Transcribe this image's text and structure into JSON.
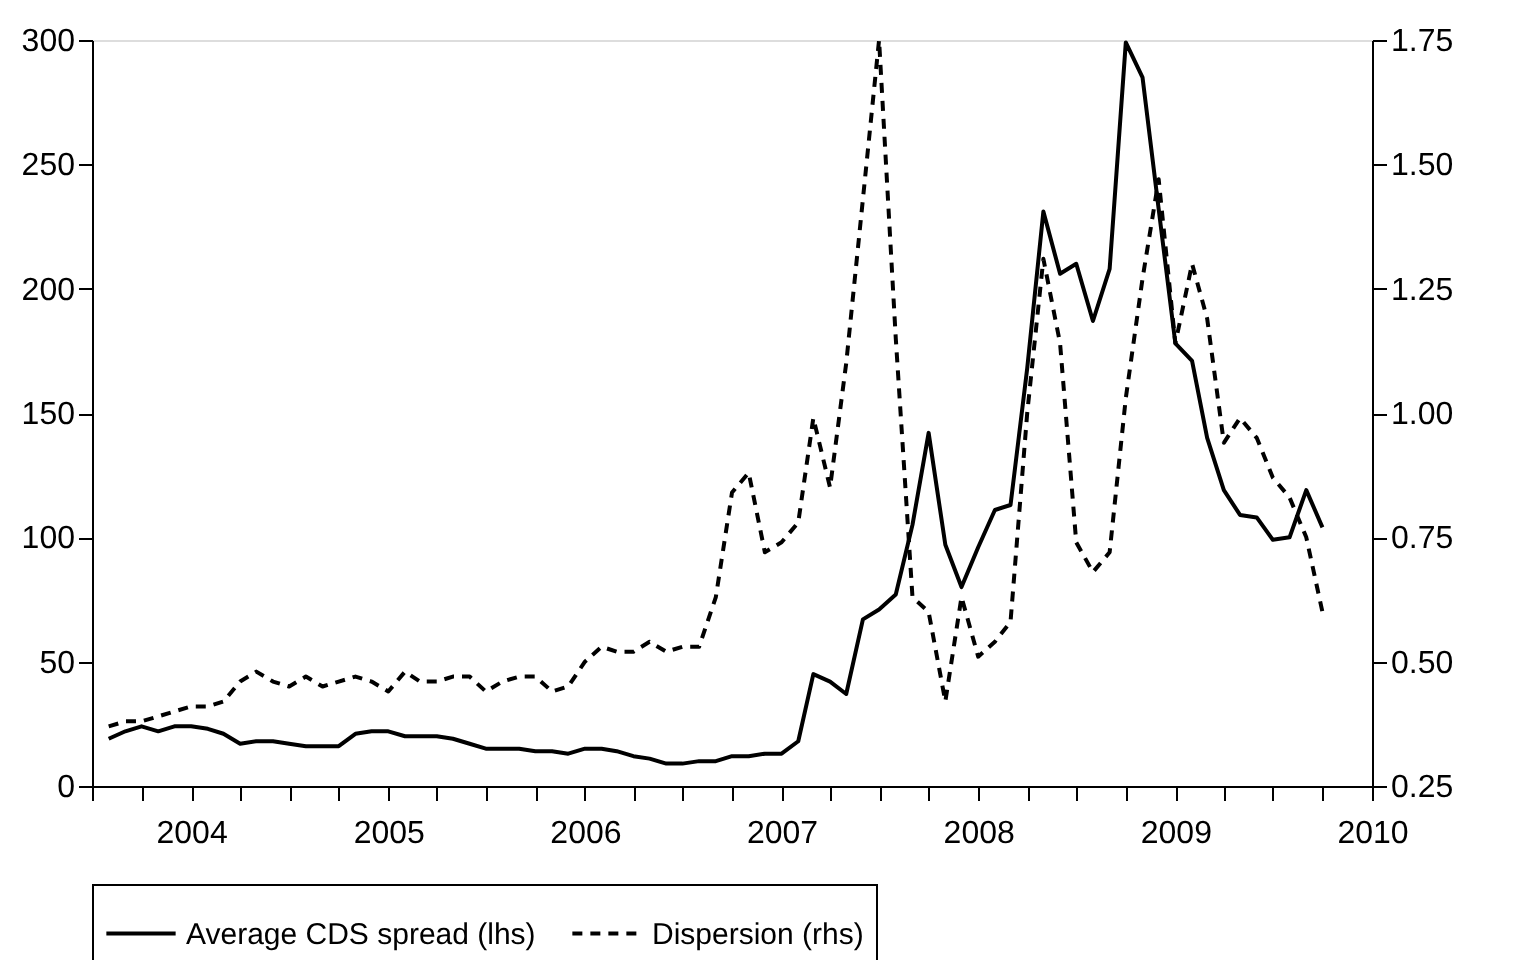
{
  "chart_data": {
    "type": "line",
    "x": [
      "2003-08",
      "2003-09",
      "2003-10",
      "2003-11",
      "2003-12",
      "2004-01",
      "2004-02",
      "2004-03",
      "2004-04",
      "2004-05",
      "2004-06",
      "2004-07",
      "2004-08",
      "2004-09",
      "2004-10",
      "2004-11",
      "2004-12",
      "2005-01",
      "2005-02",
      "2005-03",
      "2005-04",
      "2005-05",
      "2005-06",
      "2005-07",
      "2005-08",
      "2005-09",
      "2005-10",
      "2005-11",
      "2005-12",
      "2006-01",
      "2006-02",
      "2006-03",
      "2006-04",
      "2006-05",
      "2006-06",
      "2006-07",
      "2006-08",
      "2006-09",
      "2006-10",
      "2006-11",
      "2006-12",
      "2007-01",
      "2007-02",
      "2007-03",
      "2007-04",
      "2007-05",
      "2007-06",
      "2007-07",
      "2007-08",
      "2007-09",
      "2007-10",
      "2007-11",
      "2007-12",
      "2008-01",
      "2008-02",
      "2008-03",
      "2008-04",
      "2008-05",
      "2008-06",
      "2008-07",
      "2008-08",
      "2008-09",
      "2008-10",
      "2008-11",
      "2008-12",
      "2009-01",
      "2009-02",
      "2009-03",
      "2009-04",
      "2009-05",
      "2009-06",
      "2009-07",
      "2009-08",
      "2009-09",
      "2009-10"
    ],
    "series": [
      {
        "name": "Average CDS spread (lhs)",
        "color": "#000000",
        "line_style": "solid",
        "values": [
          19,
          22,
          24,
          22,
          24,
          24,
          23,
          21,
          17,
          18,
          18,
          17,
          16,
          16,
          16,
          21,
          22,
          22,
          20,
          20,
          20,
          19,
          17,
          15,
          15,
          15,
          14,
          14,
          13,
          15,
          15,
          14,
          12,
          11,
          9,
          9,
          10,
          10,
          12,
          12,
          13,
          13,
          18,
          45,
          42,
          37,
          67,
          71,
          77,
          105,
          142,
          97,
          80,
          96,
          111,
          113,
          168,
          231,
          206,
          210,
          187,
          208,
          299,
          285,
          232,
          178,
          171,
          140,
          119,
          109,
          108,
          99,
          100,
          119,
          104
        ]
      },
      {
        "name": "Dispersion (rhs)",
        "color": "#000000",
        "line_style": "dashed",
        "axis": "y2",
        "values": [
          0.37,
          0.38,
          0.38,
          0.39,
          0.4,
          0.41,
          0.41,
          0.42,
          0.46,
          0.48,
          0.46,
          0.45,
          0.47,
          0.45,
          0.46,
          0.47,
          0.46,
          0.44,
          0.48,
          0.46,
          0.46,
          0.47,
          0.47,
          0.44,
          0.46,
          0.47,
          0.47,
          0.44,
          0.45,
          0.5,
          0.53,
          0.52,
          0.52,
          0.54,
          0.52,
          0.53,
          0.53,
          0.63,
          0.84,
          0.88,
          0.72,
          0.74,
          0.78,
          0.99,
          0.85,
          1.1,
          1.43,
          1.75,
          1.15,
          0.63,
          0.6,
          0.42,
          0.63,
          0.51,
          0.54,
          0.58,
          1.0,
          1.31,
          1.14,
          0.74,
          0.68,
          0.72,
          1.03,
          1.27,
          1.47,
          1.14,
          1.3,
          1.19,
          0.94,
          0.99,
          0.95,
          0.87,
          0.83,
          0.75,
          0.6
        ]
      }
    ],
    "xlim": [
      "2003-07",
      "2010-01"
    ],
    "xticks": [
      {
        "value": "2003-07",
        "label": null
      },
      {
        "value": "2003-10",
        "label": null
      },
      {
        "value": "2004-01",
        "label": "2004"
      },
      {
        "value": "2004-04",
        "label": null
      },
      {
        "value": "2004-07",
        "label": null
      },
      {
        "value": "2004-10",
        "label": null
      },
      {
        "value": "2005-01",
        "label": "2005"
      },
      {
        "value": "2005-04",
        "label": null
      },
      {
        "value": "2005-07",
        "label": null
      },
      {
        "value": "2005-10",
        "label": null
      },
      {
        "value": "2006-01",
        "label": "2006"
      },
      {
        "value": "2006-04",
        "label": null
      },
      {
        "value": "2006-07",
        "label": null
      },
      {
        "value": "2006-10",
        "label": null
      },
      {
        "value": "2007-01",
        "label": "2007"
      },
      {
        "value": "2007-04",
        "label": null
      },
      {
        "value": "2007-07",
        "label": null
      },
      {
        "value": "2007-10",
        "label": null
      },
      {
        "value": "2008-01",
        "label": "2008"
      },
      {
        "value": "2008-04",
        "label": null
      },
      {
        "value": "2008-07",
        "label": null
      },
      {
        "value": "2008-10",
        "label": null
      },
      {
        "value": "2009-01",
        "label": "2009"
      },
      {
        "value": "2009-04",
        "label": null
      },
      {
        "value": "2009-07",
        "label": null
      },
      {
        "value": "2009-10",
        "label": null
      },
      {
        "value": "2010-01",
        "label": "2010"
      }
    ],
    "ylim": [
      0,
      300
    ],
    "yticks": [
      0,
      50,
      100,
      150,
      200,
      250,
      300
    ],
    "y2lim": [
      0.25,
      1.75
    ],
    "y2ticks": [
      0.25,
      {
        "value": 0.5,
        "label": "0.50"
      },
      0.75,
      {
        "value": 1,
        "label": "1.00"
      },
      1.25,
      {
        "value": 1.5,
        "label": "1.50"
      },
      1.75
    ],
    "grid": false,
    "legend": "bottom"
  }
}
